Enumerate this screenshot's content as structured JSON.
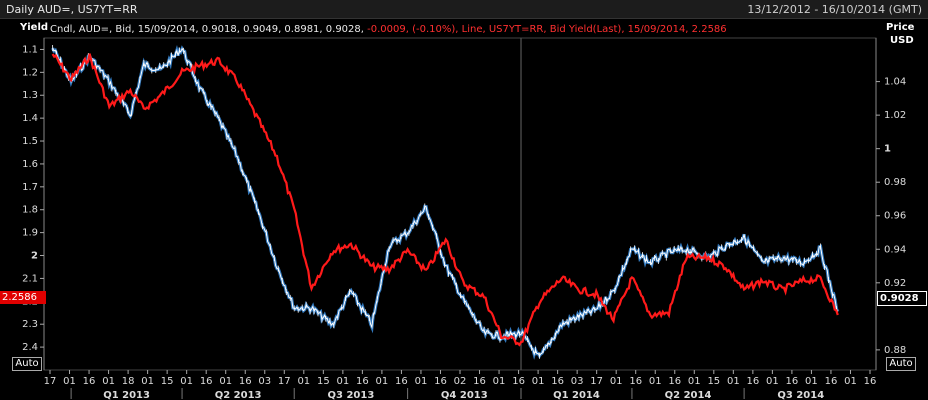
{
  "header": {
    "title": "Daily AUD=, US7YT=RR",
    "range": "13/12/2012 - 16/10/2014 (GMT)"
  },
  "legend": {
    "white_text": "Cndl, AUD=, Bid, 15/09/2014, 0.9018, 0.9049, 0.8981, 0.9028,",
    "red_text": "-0.0009, (-0.10%), Line, US7YT=RR, Bid Yield(Last), 15/09/2014, 2.2586"
  },
  "left_axis_title": "Yield",
  "right_axis_title_1": "Price",
  "right_axis_title_2": "USD",
  "auto_label_left": "Auto",
  "auto_label_right": "Auto",
  "last_yield_badge": "2.2586",
  "last_price_badge": "0.9028",
  "colors": {
    "yield_line": "#ff1a1a",
    "price_line": "#ffffff",
    "price_trend": "#3a8dde",
    "background": "#000000"
  },
  "chart_data": {
    "type": "line",
    "title": "Daily AUD=, US7YT=RR",
    "left_axis": {
      "label": "Yield",
      "range": [
        1.05,
        2.5
      ],
      "inverted": true,
      "ticks": [
        1.1,
        1.2,
        1.3,
        1.4,
        1.5,
        1.6,
        1.7,
        1.8,
        1.9,
        2,
        2.1,
        2.2,
        2.3,
        2.4
      ]
    },
    "right_axis": {
      "label": "Price USD",
      "range": [
        0.868,
        1.066
      ],
      "ticks": [
        1.04,
        1.02,
        1,
        0.98,
        0.96,
        0.94,
        0.92,
        0.88
      ]
    },
    "x_tick_labels": [
      "17",
      "01",
      "16",
      "01",
      "18",
      "01",
      "15",
      "01",
      "16",
      "01",
      "16",
      "03",
      "17",
      "01",
      "15",
      "01",
      "16",
      "01",
      "16",
      "01",
      "16",
      "02",
      "16",
      "01",
      "16",
      "01",
      "16",
      "03",
      "17",
      "01",
      "16",
      "01",
      "16",
      "01",
      "15",
      "01",
      "16",
      "01",
      "16",
      "01",
      "16",
      "01",
      "16"
    ],
    "quarter_labels": [
      "Q1 2013",
      "Q2 2013",
      "Q3 2013",
      "Q4 2013",
      "Q1 2014",
      "Q2 2014",
      "Q3 2014"
    ],
    "series": [
      {
        "name": "US7YT=RR Bid Yield(Last)",
        "axis": "left",
        "x": [
          "2012-12-17",
          "2013-01-01",
          "2013-01-16",
          "2013-02-01",
          "2013-02-18",
          "2013-03-01",
          "2013-03-15",
          "2013-04-01",
          "2013-04-16",
          "2013-05-01",
          "2013-05-16",
          "2013-06-03",
          "2013-06-17",
          "2013-07-01",
          "2013-07-15",
          "2013-08-01",
          "2013-08-16",
          "2013-09-02",
          "2013-09-16",
          "2013-10-01",
          "2013-10-16",
          "2013-11-01",
          "2013-11-15",
          "2013-12-02",
          "2013-12-16",
          "2014-01-01",
          "2014-01-16",
          "2014-02-03",
          "2014-02-17",
          "2014-03-03",
          "2014-03-17",
          "2014-04-01",
          "2014-04-16",
          "2014-05-01",
          "2014-05-15",
          "2014-06-02",
          "2014-06-16",
          "2014-07-01",
          "2014-07-16",
          "2014-08-01",
          "2014-08-18",
          "2014-09-01",
          "2014-09-15"
        ],
        "values": [
          1.12,
          1.23,
          1.13,
          1.35,
          1.28,
          1.36,
          1.3,
          1.2,
          1.17,
          1.15,
          1.24,
          1.42,
          1.57,
          1.8,
          2.14,
          1.98,
          1.95,
          2.05,
          2.06,
          1.98,
          2.07,
          1.93,
          2.12,
          2.18,
          2.35,
          2.38,
          2.2,
          2.1,
          2.15,
          2.17,
          2.28,
          2.1,
          2.26,
          2.25,
          2.01,
          2.01,
          2.05,
          2.15,
          2.11,
          2.15,
          2.11,
          2.1,
          2.26
        ]
      },
      {
        "name": "AUD= Bid",
        "axis": "right",
        "x": [
          "2012-12-17",
          "2013-01-01",
          "2013-01-16",
          "2013-02-01",
          "2013-02-18",
          "2013-03-01",
          "2013-03-15",
          "2013-04-01",
          "2013-04-16",
          "2013-05-01",
          "2013-05-16",
          "2013-06-03",
          "2013-06-17",
          "2013-07-01",
          "2013-07-15",
          "2013-08-01",
          "2013-08-16",
          "2013-09-02",
          "2013-09-16",
          "2013-10-01",
          "2013-10-16",
          "2013-11-01",
          "2013-11-15",
          "2013-12-02",
          "2013-12-16",
          "2014-01-01",
          "2014-01-16",
          "2014-02-03",
          "2014-02-17",
          "2014-03-03",
          "2014-03-17",
          "2014-04-01",
          "2014-04-16",
          "2014-05-01",
          "2014-05-15",
          "2014-06-02",
          "2014-06-16",
          "2014-07-01",
          "2014-07-16",
          "2014-08-01",
          "2014-08-18",
          "2014-09-01",
          "2014-09-15"
        ],
        "values": [
          1.06,
          1.04,
          1.055,
          1.04,
          1.02,
          1.05,
          1.047,
          1.06,
          1.035,
          1.017,
          0.995,
          0.96,
          0.93,
          0.905,
          0.905,
          0.895,
          0.915,
          0.895,
          0.942,
          0.95,
          0.965,
          0.93,
          0.91,
          0.89,
          0.888,
          0.89,
          0.875,
          0.895,
          0.9,
          0.904,
          0.915,
          0.94,
          0.932,
          0.938,
          0.94,
          0.935,
          0.942,
          0.947,
          0.932,
          0.935,
          0.932,
          0.94,
          0.9028
        ]
      }
    ]
  }
}
